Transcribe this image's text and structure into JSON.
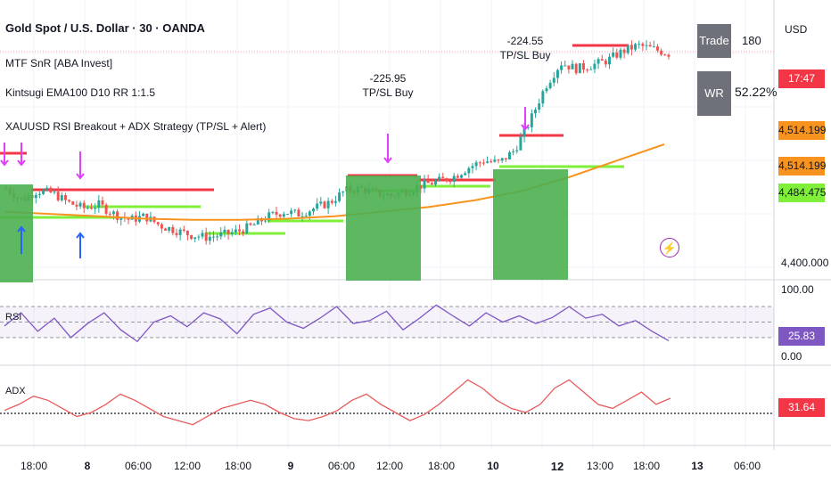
{
  "header": {
    "title": "Gold Spot / U.S. Dollar · 30 · OANDA",
    "indicators": [
      "MTF SnR [ABA Invest]",
      "Kintsugi EMA100 D10 RR 1:1.5",
      "XAUUSD RSI Breakout + ADX Strategy (TP/SL + Alert)"
    ]
  },
  "currency_button": "USD",
  "stats": {
    "trade_label": "Trade",
    "trade_value": "180",
    "wr_label": "WR",
    "wr_value": "52.22%"
  },
  "price_scale": {
    "countdown": "17:47",
    "badge_1": "4,514.199",
    "badge_2": "4,514.199",
    "badge_3": "4,484.475",
    "level_4400": "4,400.000"
  },
  "signals": {
    "tp1_value": "-225.95",
    "tp1_label": "TP/SL Buy",
    "tp2_value": "-224.55",
    "tp2_label": "TP/SL Buy"
  },
  "rsi_pane": {
    "label": "RSI",
    "top_value": "100.00",
    "current_badge": "25.83",
    "bottom_value": "0.00"
  },
  "adx_pane": {
    "label": "ADX",
    "current_badge": "31.64"
  },
  "colors": {
    "bull": "#26a69a",
    "bear": "#ef5350",
    "ema": "#f7931e",
    "resistance": "#f23645",
    "support": "#7fef3a",
    "buy_box": "#4caf50",
    "rsi": "#7e57c2",
    "adx": "#e85a5a",
    "stat_box": "#6f717a"
  },
  "chart_data": {
    "type": "candlestick",
    "timeframe": "30",
    "x_ticks": [
      "18:00",
      "8",
      "06:00",
      "12:00",
      "18:00",
      "9",
      "06:00",
      "12:00",
      "18:00",
      "10",
      "12",
      "13:00",
      "18:00",
      "13",
      "06:00"
    ],
    "y_axis_visible_level": 4400,
    "price_path": [
      4472,
      4462,
      4470,
      4468,
      4460,
      4455,
      4458,
      4450,
      4445,
      4448,
      4440,
      4436,
      4432,
      4430,
      4432,
      4435,
      4440,
      4448,
      4452,
      4450,
      4455,
      4460,
      4470,
      4472,
      4468,
      4466,
      4470,
      4475,
      4478,
      4482,
      4490,
      4496,
      4494,
      4505,
      4530,
      4560,
      4580,
      4575,
      4578,
      4582,
      4590,
      4595,
      4592,
      4588
    ],
    "ema_line": [
      4452,
      4450,
      4448,
      4446,
      4445,
      4445,
      4446,
      4448,
      4452,
      4456,
      4462,
      4470,
      4482,
      4496,
      4510
    ],
    "rsi_values": [
      45,
      62,
      38,
      55,
      30,
      48,
      62,
      40,
      25,
      50,
      58,
      44,
      62,
      54,
      35,
      60,
      68,
      50,
      42,
      55,
      70,
      48,
      52,
      64,
      40,
      55,
      72,
      58,
      45,
      62,
      50,
      58,
      48,
      56,
      70,
      55,
      60,
      45,
      52,
      38,
      26
    ],
    "rsi_range": [
      0,
      100
    ],
    "adx_values": [
      25,
      28,
      32,
      30,
      26,
      22,
      24,
      28,
      33,
      30,
      26,
      22,
      20,
      18,
      22,
      26,
      28,
      30,
      28,
      24,
      21,
      20,
      22,
      25,
      30,
      33,
      28,
      24,
      20,
      23,
      28,
      34,
      40,
      36,
      30,
      26,
      24,
      28,
      36,
      40,
      34,
      28,
      26,
      30,
      34,
      28,
      31
    ]
  }
}
